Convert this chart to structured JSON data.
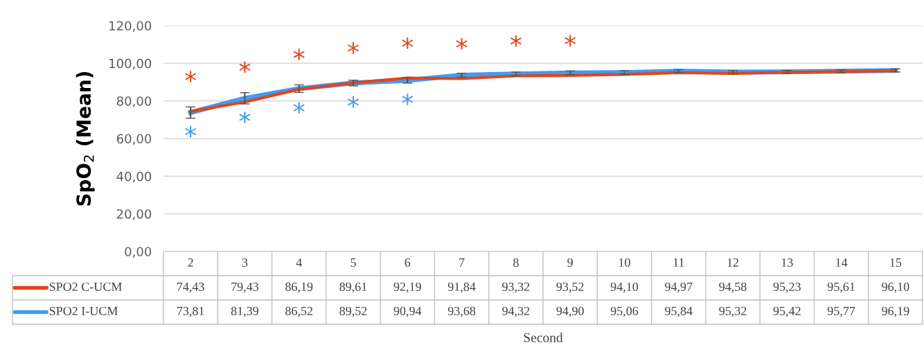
{
  "chart_data": {
    "type": "line",
    "xlabel": "Second",
    "ylabel": "SpO$_{2}$ (Mean)",
    "categories": [
      "2",
      "3",
      "4",
      "5",
      "6",
      "7",
      "8",
      "9",
      "10",
      "11",
      "12",
      "13",
      "14",
      "15"
    ],
    "series": [
      {
        "name": "SPO2 C-UCM",
        "color": "#e2451c",
        "values": [
          74.43,
          79.43,
          86.19,
          89.61,
          92.19,
          91.84,
          93.32,
          93.52,
          94.1,
          94.97,
          94.58,
          95.23,
          95.61,
          96.1
        ]
      },
      {
        "name": "SPO2 I-UCM",
        "color": "#419bf0",
        "values": [
          73.81,
          81.39,
          86.52,
          89.52,
          90.94,
          93.68,
          94.32,
          94.9,
          95.06,
          95.84,
          95.32,
          95.42,
          95.77,
          96.19
        ],
        "errors": [
          3,
          3,
          2,
          1.5,
          1.5,
          1,
          1,
          1,
          1,
          0.8,
          0.8,
          0.8,
          0.8,
          0.8
        ]
      }
    ],
    "ylim": [
      0,
      120
    ],
    "yticks": [
      {
        "value": 0,
        "label": "0,00"
      },
      {
        "value": 20,
        "label": "20,00"
      },
      {
        "value": 40,
        "label": "40,00"
      },
      {
        "value": 60,
        "label": "60,00"
      },
      {
        "value": 80,
        "label": "80,00"
      },
      {
        "value": 100,
        "label": "100,00"
      },
      {
        "value": 120,
        "label": "120,00"
      }
    ],
    "value_labels": [
      [
        "74,43",
        "79,43",
        "86,19",
        "89,61",
        "92,19",
        "91,84",
        "93,32",
        "93,52",
        "94,10",
        "94,97",
        "94,58",
        "95,23",
        "95,61",
        "96,10"
      ],
      [
        "73,81",
        "81,39",
        "86,52",
        "89,52",
        "90,94",
        "93,68",
        "94,32",
        "94,90",
        "95,06",
        "95,84",
        "95,32",
        "95,42",
        "95,77",
        "96,19"
      ]
    ],
    "annotations": [
      {
        "text": "*",
        "x": "2",
        "y": 74.43
      },
      {
        "text": "*",
        "x": "3",
        "y": 79.43
      },
      {
        "text": "*",
        "x": "4",
        "y": 86.19
      },
      {
        "text": "*",
        "x": "5",
        "y": 89.61
      },
      {
        "text": "*",
        "x": "6",
        "y": 92.19
      },
      {
        "text": "*",
        "x": "7",
        "y": 91.84
      },
      {
        "text": "*",
        "x": "8",
        "y": 93.32
      },
      {
        "text": "*",
        "x": "9",
        "y": 93.52
      },
      {
        "text": "*",
        "x": "2",
        "y": 73.81
      },
      {
        "text": "*",
        "x": "3",
        "y": 81.39
      },
      {
        "text": "*",
        "x": "4",
        "y": 86.52
      },
      {
        "text": "*",
        "x": "5",
        "y": 89.52
      },
      {
        "text": "*",
        "x": "6",
        "y": 90.94
      }
    ],
    "grid": "y",
    "legend": "bottom",
    "marker": "none",
    "line_style": "solid"
  }
}
